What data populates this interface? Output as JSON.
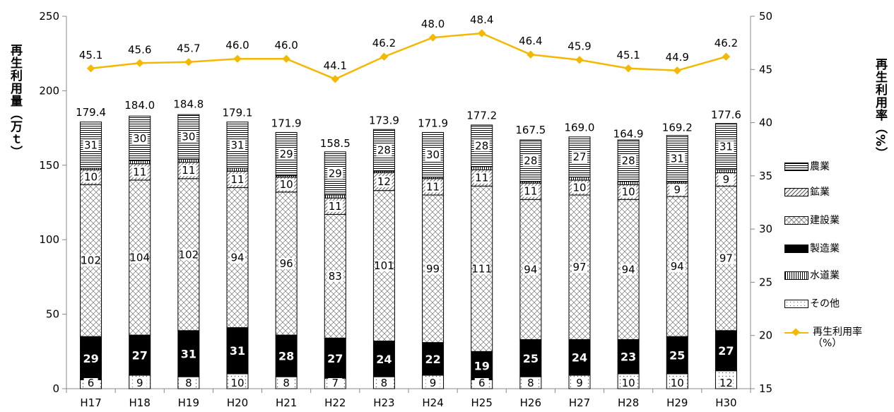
{
  "chart_data": {
    "type": "bar",
    "subtype": "stacked-bar-with-line",
    "categories": [
      "H17",
      "H18",
      "H19",
      "H20",
      "H21",
      "H22",
      "H23",
      "H24",
      "H25",
      "H26",
      "H27",
      "H28",
      "H29",
      "H30"
    ],
    "series": [
      {
        "name": "その他",
        "pattern": "dots",
        "values": [
          6,
          9,
          8,
          10,
          8,
          7,
          8,
          9,
          6,
          8,
          9,
          10,
          10,
          12
        ]
      },
      {
        "name": "製造業",
        "pattern": "solid-black",
        "values": [
          29,
          27,
          31,
          31,
          28,
          27,
          24,
          22,
          19,
          25,
          24,
          23,
          25,
          27
        ]
      },
      {
        "name": "建設業",
        "pattern": "crosshatch",
        "values": [
          102,
          104,
          102,
          94,
          96,
          83,
          101,
          99,
          111,
          94,
          97,
          94,
          94,
          97
        ]
      },
      {
        "name": "鉱業",
        "pattern": "diagonal",
        "values": [
          10,
          11,
          11,
          11,
          10,
          11,
          12,
          11,
          11,
          11,
          10,
          10,
          9,
          9
        ]
      },
      {
        "name": "水道業",
        "pattern": "vertical-lines",
        "values": [
          1,
          2,
          2,
          2,
          1,
          2,
          1,
          1,
          2,
          1,
          2,
          2,
          1,
          2
        ]
      },
      {
        "name": "農業",
        "pattern": "horizontal-lines",
        "values": [
          31,
          30,
          30,
          31,
          29,
          29,
          28,
          30,
          28,
          28,
          27,
          28,
          31,
          31
        ]
      }
    ],
    "totals": [
      "179.4",
      "184.0",
      "184.8",
      "179.1",
      "171.9",
      "158.5",
      "173.9",
      "171.9",
      "177.2",
      "167.5",
      "169.0",
      "164.9",
      "169.2",
      "177.6"
    ],
    "line": {
      "name": "再生利用率（%）",
      "color": "#f5b800",
      "axis": "right",
      "values": [
        45.1,
        45.6,
        45.7,
        46.0,
        46.0,
        44.1,
        46.2,
        48.0,
        48.4,
        46.4,
        45.9,
        45.1,
        44.9,
        46.2
      ],
      "labels": [
        "45.1",
        "45.6",
        "45.7",
        "46.0",
        "46.0",
        "44.1",
        "46.2",
        "48.0",
        "48.4",
        "46.4",
        "45.9",
        "45.1",
        "44.9",
        "46.2"
      ]
    },
    "ylabel": "再生利用量（万ｔ）",
    "ylabel_right": "再生利用率（%）",
    "ylim": [
      0,
      250
    ],
    "yticks": [
      "0",
      "50",
      "100",
      "150",
      "200",
      "250"
    ],
    "ylim_right": [
      15,
      50
    ],
    "yticks_right": [
      "15",
      "20",
      "25",
      "30",
      "35",
      "40",
      "45",
      "50"
    ],
    "legend_position": "right",
    "grid": false
  }
}
